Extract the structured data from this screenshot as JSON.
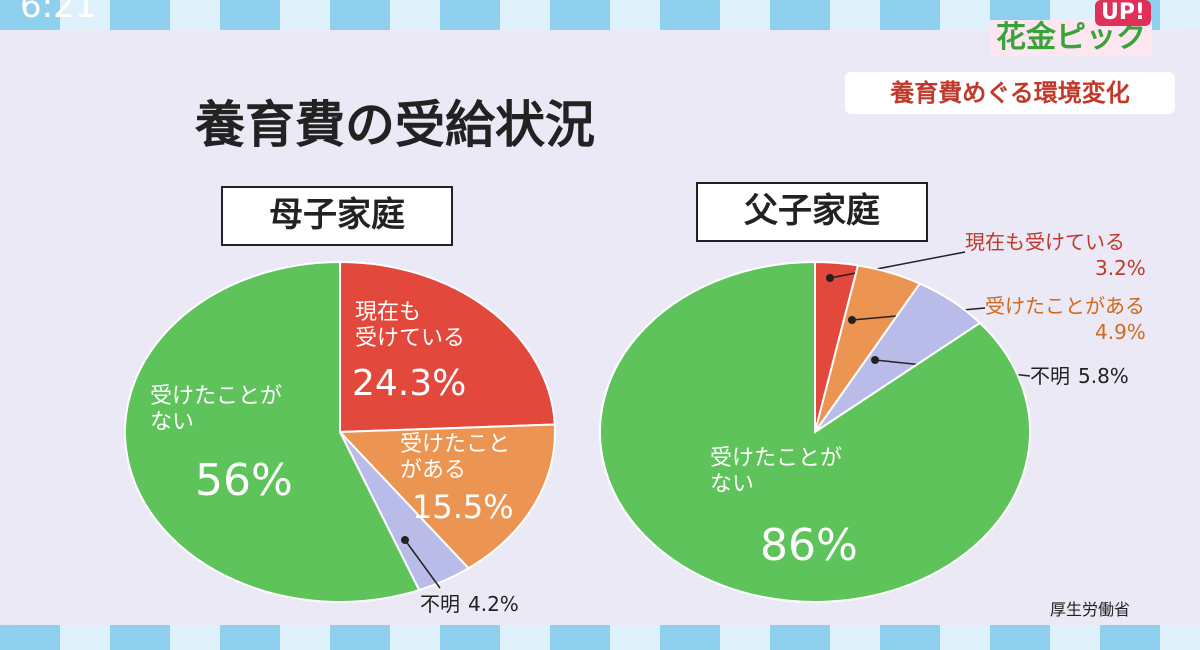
{
  "clock": "6:21",
  "logo": {
    "text": "花金ピック",
    "badge": "UP!"
  },
  "banner": "養育費めぐる環境変化",
  "title": "養育費の受給状況",
  "source": "厚生労働省",
  "chart_data": [
    {
      "type": "pie",
      "title": "母子家庭",
      "categories": [
        "現在も\n受けている",
        "受けたこと\nがある",
        "不明",
        "受けたことが\nない"
      ],
      "values": [
        24.3,
        15.5,
        4.2,
        56
      ],
      "value_labels": [
        "24.3%",
        "15.5%",
        "4.2%",
        "56%"
      ],
      "colors": [
        "#e2483b",
        "#ec9452",
        "#b9bbe8",
        "#5ec35b"
      ]
    },
    {
      "type": "pie",
      "title": "父子家庭",
      "categories": [
        "現在も受けている",
        "受けたことがある",
        "不明",
        "受けたことが\nない"
      ],
      "values": [
        3.2,
        4.9,
        5.8,
        86
      ],
      "value_labels": [
        "3.2%",
        "4.9%",
        "5.8%",
        "86%"
      ],
      "colors": [
        "#e2483b",
        "#ec9452",
        "#b9bbe8",
        "#5ec35b"
      ]
    }
  ]
}
